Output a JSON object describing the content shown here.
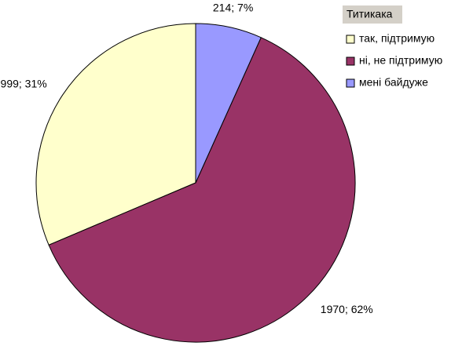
{
  "chart_data": {
    "type": "pie",
    "legend_title": "Титикака",
    "categories": [
      "так, підтримую",
      "ні, не підтримую",
      "мені байдуже"
    ],
    "values": [
      999,
      1970,
      214
    ],
    "value_labels": [
      "999; 31%",
      "1970; 62%",
      "214; 7%"
    ],
    "colors": [
      "#ffffcc",
      "#993366",
      "#9999ff"
    ],
    "legend": "top-right"
  }
}
